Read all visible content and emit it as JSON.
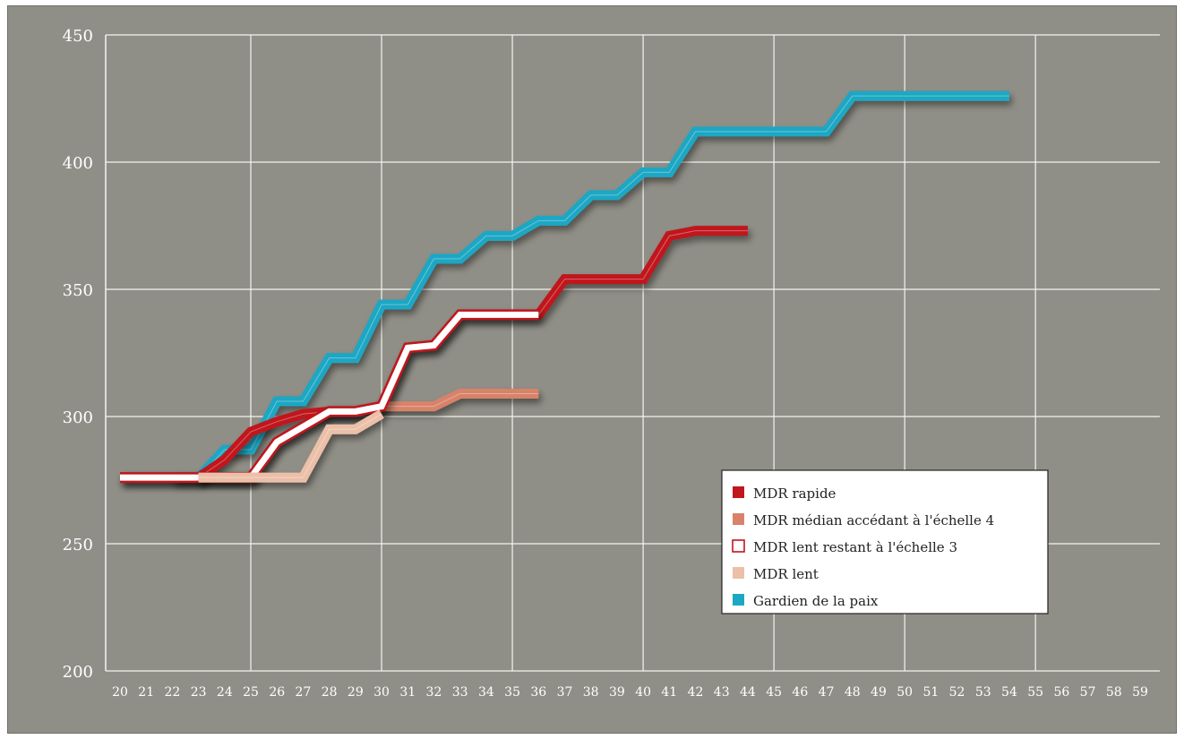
{
  "chart_data": {
    "type": "line",
    "title": "",
    "xlabel": "",
    "ylabel": "",
    "x": [
      20,
      21,
      22,
      23,
      24,
      25,
      26,
      27,
      28,
      29,
      30,
      31,
      32,
      33,
      34,
      35,
      36,
      37,
      38,
      39,
      40,
      41,
      42,
      43,
      44,
      45,
      46,
      47,
      48,
      49,
      50,
      51,
      52,
      53,
      54,
      55,
      56,
      57,
      58,
      59
    ],
    "x_ticks": [
      "20",
      "21",
      "22",
      "23",
      "24",
      "25",
      "26",
      "27",
      "28",
      "29",
      "30",
      "31",
      "32",
      "33",
      "34",
      "35",
      "36",
      "37",
      "38",
      "39",
      "40",
      "41",
      "42",
      "43",
      "44",
      "45",
      "46",
      "47",
      "48",
      "49",
      "50",
      "51",
      "52",
      "53",
      "54",
      "55",
      "56",
      "57",
      "58",
      "59"
    ],
    "ylim": [
      200,
      450
    ],
    "y_ticks": [
      "200",
      "250",
      "300",
      "350",
      "400",
      "450"
    ],
    "grid": true,
    "legend_position": "bottom-right",
    "series": [
      {
        "name": "MDR rapide",
        "color": "#c0161e",
        "points": [
          [
            20,
            276
          ],
          [
            21,
            276
          ],
          [
            22,
            276
          ],
          [
            23,
            276
          ],
          [
            24,
            283
          ],
          [
            25,
            294
          ],
          [
            26,
            298
          ],
          [
            27,
            301
          ],
          [
            28,
            302
          ],
          [
            29,
            302
          ],
          [
            30,
            304
          ],
          [
            31,
            327
          ],
          [
            32,
            328
          ],
          [
            33,
            340
          ],
          [
            34,
            340
          ],
          [
            35,
            340
          ],
          [
            36,
            340
          ],
          [
            37,
            354
          ],
          [
            38,
            354
          ],
          [
            39,
            354
          ],
          [
            40,
            354
          ],
          [
            41,
            371
          ],
          [
            42,
            373
          ],
          [
            43,
            373
          ],
          [
            44,
            373
          ]
        ]
      },
      {
        "name": "MDR médian accédant à l'échelle 4",
        "color": "#d9826b",
        "points": [
          [
            23,
            276
          ],
          [
            24,
            276
          ],
          [
            25,
            276
          ],
          [
            26,
            290
          ],
          [
            27,
            296
          ],
          [
            28,
            302
          ],
          [
            29,
            302
          ],
          [
            30,
            304
          ],
          [
            31,
            304
          ],
          [
            32,
            304
          ],
          [
            33,
            309
          ],
          [
            34,
            309
          ],
          [
            35,
            309
          ],
          [
            36,
            309
          ]
        ]
      },
      {
        "name": "MDR lent restant à l'échelle 3",
        "color": "#c0161e",
        "fill": "#ffffff",
        "points": [
          [
            20,
            276
          ],
          [
            21,
            276
          ],
          [
            22,
            276
          ],
          [
            23,
            276
          ],
          [
            24,
            276
          ],
          [
            25,
            276
          ],
          [
            26,
            290
          ],
          [
            27,
            296
          ],
          [
            28,
            302
          ],
          [
            29,
            302
          ],
          [
            30,
            304
          ],
          [
            31,
            327
          ],
          [
            32,
            328
          ],
          [
            33,
            340
          ],
          [
            34,
            340
          ],
          [
            35,
            340
          ],
          [
            36,
            340
          ]
        ]
      },
      {
        "name": "MDR lent",
        "color": "#ecbfa8",
        "points": [
          [
            23,
            276
          ],
          [
            24,
            276
          ],
          [
            25,
            276
          ],
          [
            26,
            276
          ],
          [
            27,
            276
          ],
          [
            28,
            295
          ],
          [
            29,
            295
          ],
          [
            30,
            301
          ]
        ]
      },
      {
        "name": "Gardien de la paix",
        "color": "#1ca7c4",
        "points": [
          [
            22,
            276
          ],
          [
            23,
            276
          ],
          [
            24,
            287
          ],
          [
            25,
            287
          ],
          [
            26,
            306
          ],
          [
            27,
            306
          ],
          [
            28,
            323
          ],
          [
            29,
            323
          ],
          [
            30,
            344
          ],
          [
            31,
            344
          ],
          [
            32,
            362
          ],
          [
            33,
            362
          ],
          [
            34,
            371
          ],
          [
            35,
            371
          ],
          [
            36,
            377
          ],
          [
            37,
            377
          ],
          [
            38,
            387
          ],
          [
            39,
            387
          ],
          [
            40,
            396
          ],
          [
            41,
            396
          ],
          [
            42,
            412
          ],
          [
            43,
            412
          ],
          [
            44,
            412
          ],
          [
            45,
            412
          ],
          [
            46,
            412
          ],
          [
            47,
            412
          ],
          [
            48,
            426
          ],
          [
            49,
            426
          ],
          [
            50,
            426
          ],
          [
            51,
            426
          ],
          [
            52,
            426
          ],
          [
            53,
            426
          ],
          [
            54,
            426
          ]
        ]
      }
    ]
  }
}
